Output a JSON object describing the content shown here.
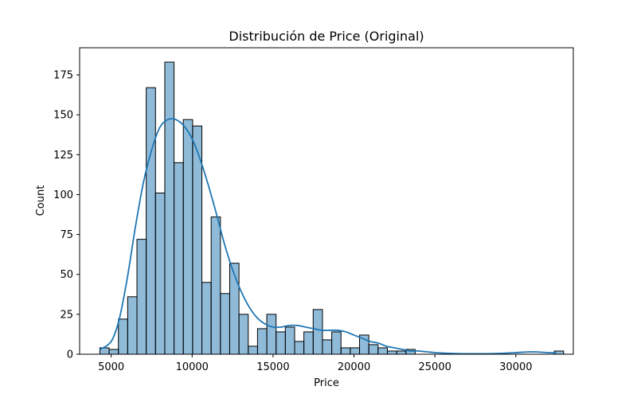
{
  "chart_data": {
    "type": "bar",
    "title": "Distribución de Price (Original)",
    "xlabel": "Price",
    "ylabel": "Count",
    "xlim": [
      3050,
      33550
    ],
    "ylim": [
      0,
      192
    ],
    "xticks": [
      5000,
      10000,
      15000,
      20000,
      25000,
      30000
    ],
    "yticks": [
      0,
      25,
      50,
      75,
      100,
      125,
      150,
      175
    ],
    "grid": false,
    "legend": "none",
    "bar_color": "#1f77b4",
    "bar_opacity": 0.5,
    "bar_edge_color": "#000000",
    "line_color": "#1f77b4",
    "bin_start": 4300,
    "bin_width": 573,
    "counts": [
      4,
      3,
      22,
      36,
      72,
      167,
      101,
      183,
      120,
      147,
      143,
      45,
      86,
      38,
      57,
      25,
      5,
      16,
      25,
      14,
      17,
      8,
      14,
      28,
      9,
      14,
      4,
      4,
      12,
      6,
      4,
      2,
      2,
      3,
      0,
      0,
      0,
      0,
      0,
      0,
      0,
      0,
      0,
      0,
      0,
      0,
      0,
      0,
      0,
      2,
      0
    ],
    "kde": {
      "x": [
        4300,
        5000,
        5500,
        6000,
        6500,
        7000,
        7500,
        8000,
        8500,
        9000,
        9500,
        10000,
        10500,
        11000,
        11500,
        12000,
        12500,
        13000,
        13500,
        14000,
        14500,
        15000,
        15500,
        16000,
        16500,
        17000,
        17500,
        18000,
        18500,
        19000,
        19500,
        20000,
        20500,
        21000,
        21500,
        22000,
        22500,
        23000,
        23500,
        24000,
        25000,
        26000,
        27000,
        28000,
        29000,
        30000,
        31000,
        32000,
        32500
      ],
      "y": [
        3,
        8,
        22,
        48,
        80,
        108,
        128,
        142,
        147,
        147,
        143,
        135,
        122,
        106,
        88,
        69,
        53,
        40,
        30,
        23,
        19,
        17,
        17,
        18,
        18,
        17,
        16,
        15,
        15,
        15,
        14,
        12,
        10,
        8,
        7,
        5,
        4,
        3,
        2,
        2,
        1,
        0.5,
        0.3,
        0.3,
        0.5,
        1,
        1.5,
        1,
        0.8
      ]
    }
  }
}
